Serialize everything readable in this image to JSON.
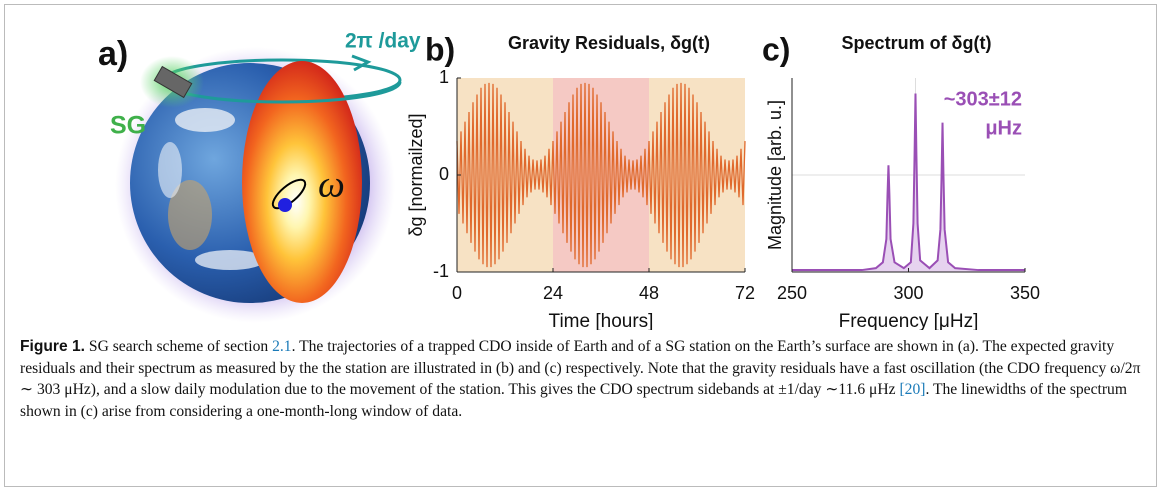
{
  "figure": {
    "panel_a": {
      "label": "a)",
      "rotation": "2π /day",
      "station": "SG",
      "omega": "ω"
    }
  },
  "chart_data": [
    {
      "type": "line",
      "panel_label": "b)",
      "title": "Gravity Residuals, δg(t)",
      "x_label": "Time [hours]",
      "y_label": "δg [normailzed]",
      "xlim": [
        0,
        72
      ],
      "ylim": [
        -1,
        1
      ],
      "xticks": [
        0,
        24,
        48,
        72
      ],
      "yticks": [
        -1,
        0,
        1
      ],
      "band_colors": [
        "#f7e2c4",
        "#f5c9c4",
        "#f7e2c4"
      ],
      "x": [
        0,
        0.5,
        1,
        1.5,
        2,
        2.5,
        3,
        3.5,
        4,
        4.5,
        5,
        5.5,
        6,
        6.5,
        7,
        7.5,
        8,
        8.5,
        9,
        9.5,
        10,
        10.5,
        11,
        11.5,
        12,
        12.5,
        13,
        13.5,
        14,
        14.5,
        15,
        15.5,
        16,
        16.5,
        17,
        17.5,
        18,
        18.5,
        19,
        19.5,
        20,
        20.5,
        21,
        21.5,
        22,
        22.5,
        23,
        23.5,
        24,
        24.5,
        25,
        25.5,
        26,
        26.5,
        27,
        27.5,
        28,
        28.5,
        29,
        29.5,
        30,
        30.5,
        31,
        31.5,
        32,
        32.5,
        33,
        33.5,
        34,
        34.5,
        35,
        35.5,
        36,
        36.5,
        37,
        37.5,
        38,
        38.5,
        39,
        39.5,
        40,
        40.5,
        41,
        41.5,
        42,
        42.5,
        43,
        43.5,
        44,
        44.5,
        45,
        45.5,
        46,
        46.5,
        47,
        47.5,
        48,
        48.5,
        49,
        49.5,
        50,
        50.5,
        51,
        51.5,
        52,
        52.5,
        53,
        53.5,
        54,
        54.5,
        55,
        55.5,
        56,
        56.5,
        57,
        57.5,
        58,
        58.5,
        59,
        59.5,
        60,
        60.5,
        61,
        61.5,
        62,
        62.5,
        63,
        63.5,
        64,
        64.5,
        65,
        65.5,
        66,
        66.5,
        67,
        67.5,
        68,
        68.5,
        69,
        69.5,
        70,
        70.5,
        71,
        71.5,
        72
      ],
      "series": [
        {
          "color": "#e0692c",
          "values": [
            0.35,
            -0.4,
            0.45,
            -0.5,
            0.55,
            -0.6,
            0.65,
            -0.7,
            0.75,
            -0.79,
            0.83,
            -0.87,
            0.9,
            -0.92,
            0.94,
            -0.95,
            0.95,
            -0.95,
            0.94,
            -0.92,
            0.9,
            -0.87,
            0.83,
            -0.79,
            0.75,
            -0.7,
            0.65,
            -0.6,
            0.55,
            -0.5,
            0.45,
            -0.4,
            0.35,
            -0.31,
            0.27,
            -0.23,
            0.2,
            -0.18,
            0.16,
            -0.15,
            0.15,
            -0.15,
            0.16,
            -0.18,
            0.2,
            -0.23,
            0.27,
            -0.31,
            0.35,
            -0.4,
            0.45,
            -0.5,
            0.55,
            -0.6,
            0.65,
            -0.7,
            0.75,
            -0.79,
            0.83,
            -0.87,
            0.9,
            -0.92,
            0.94,
            -0.95,
            0.95,
            -0.95,
            0.94,
            -0.92,
            0.9,
            -0.87,
            0.83,
            -0.79,
            0.75,
            -0.7,
            0.65,
            -0.6,
            0.55,
            -0.5,
            0.45,
            -0.4,
            0.35,
            -0.31,
            0.27,
            -0.23,
            0.2,
            -0.18,
            0.16,
            -0.15,
            0.15,
            -0.15,
            0.16,
            -0.18,
            0.2,
            -0.23,
            0.27,
            -0.31,
            0.35,
            -0.4,
            0.45,
            -0.5,
            0.55,
            -0.6,
            0.65,
            -0.7,
            0.75,
            -0.79,
            0.83,
            -0.87,
            0.9,
            -0.92,
            0.94,
            -0.95,
            0.95,
            -0.95,
            0.94,
            -0.92,
            0.9,
            -0.87,
            0.83,
            -0.79,
            0.75,
            -0.7,
            0.65,
            -0.6,
            0.55,
            -0.5,
            0.45,
            -0.4,
            0.35,
            -0.31,
            0.27,
            -0.23,
            0.2,
            -0.18,
            0.16,
            -0.15,
            0.15,
            -0.15,
            0.16,
            -0.18,
            0.2,
            -0.23,
            0.27,
            -0.31,
            0.35
          ]
        }
      ]
    },
    {
      "type": "line",
      "panel_label": "c)",
      "title": "Spectrum of δg(t)",
      "x_label": "Frequency [μHz]",
      "y_label": "Magnitude [arb. u.]",
      "xlim": [
        250,
        350
      ],
      "ylim": [
        0,
        1
      ],
      "xticks": [
        250,
        300,
        350
      ],
      "guide_x": 303,
      "guide_y": 0.5,
      "annotations": [
        "~303±12",
        "μHz"
      ],
      "fill_color": "#e6d3ef",
      "x": [
        250,
        280,
        286,
        289,
        290.5,
        291,
        291.4,
        291.8,
        292.3,
        294,
        298,
        301,
        302.1,
        302.6,
        303,
        303.4,
        303.9,
        305,
        309,
        312.5,
        313.7,
        314.2,
        314.6,
        315,
        315.5,
        317,
        320,
        330,
        350
      ],
      "series": [
        {
          "color": "#9a4fb5",
          "values": [
            0.01,
            0.01,
            0.02,
            0.05,
            0.17,
            0.4,
            0.55,
            0.4,
            0.17,
            0.05,
            0.02,
            0.05,
            0.25,
            0.6,
            0.92,
            0.6,
            0.25,
            0.06,
            0.02,
            0.06,
            0.22,
            0.5,
            0.77,
            0.5,
            0.22,
            0.05,
            0.02,
            0.01,
            0.01
          ]
        }
      ]
    }
  ],
  "caption": {
    "label": "Figure 1.",
    "parts": [
      " SG search scheme of section ",
      "2.1",
      ". The trajectories of a trapped CDO inside of Earth and of a SG station on the Earth’s surface are shown in (a). The expected gravity residuals and their spectrum as measured by the the station are illustrated in (b) and (c) respectively. Note that the gravity residuals have a fast oscillation (the CDO frequency ω/2π ∼ 303 μHz), and a slow daily modulation due to the movement of the station. This gives the CDO spectrum sidebands at ±1/day ∼11.6 μHz ",
      "[20]",
      ". The linewidths of the spectrum shown in (c) arise from considering a one-month-long window of data."
    ]
  }
}
